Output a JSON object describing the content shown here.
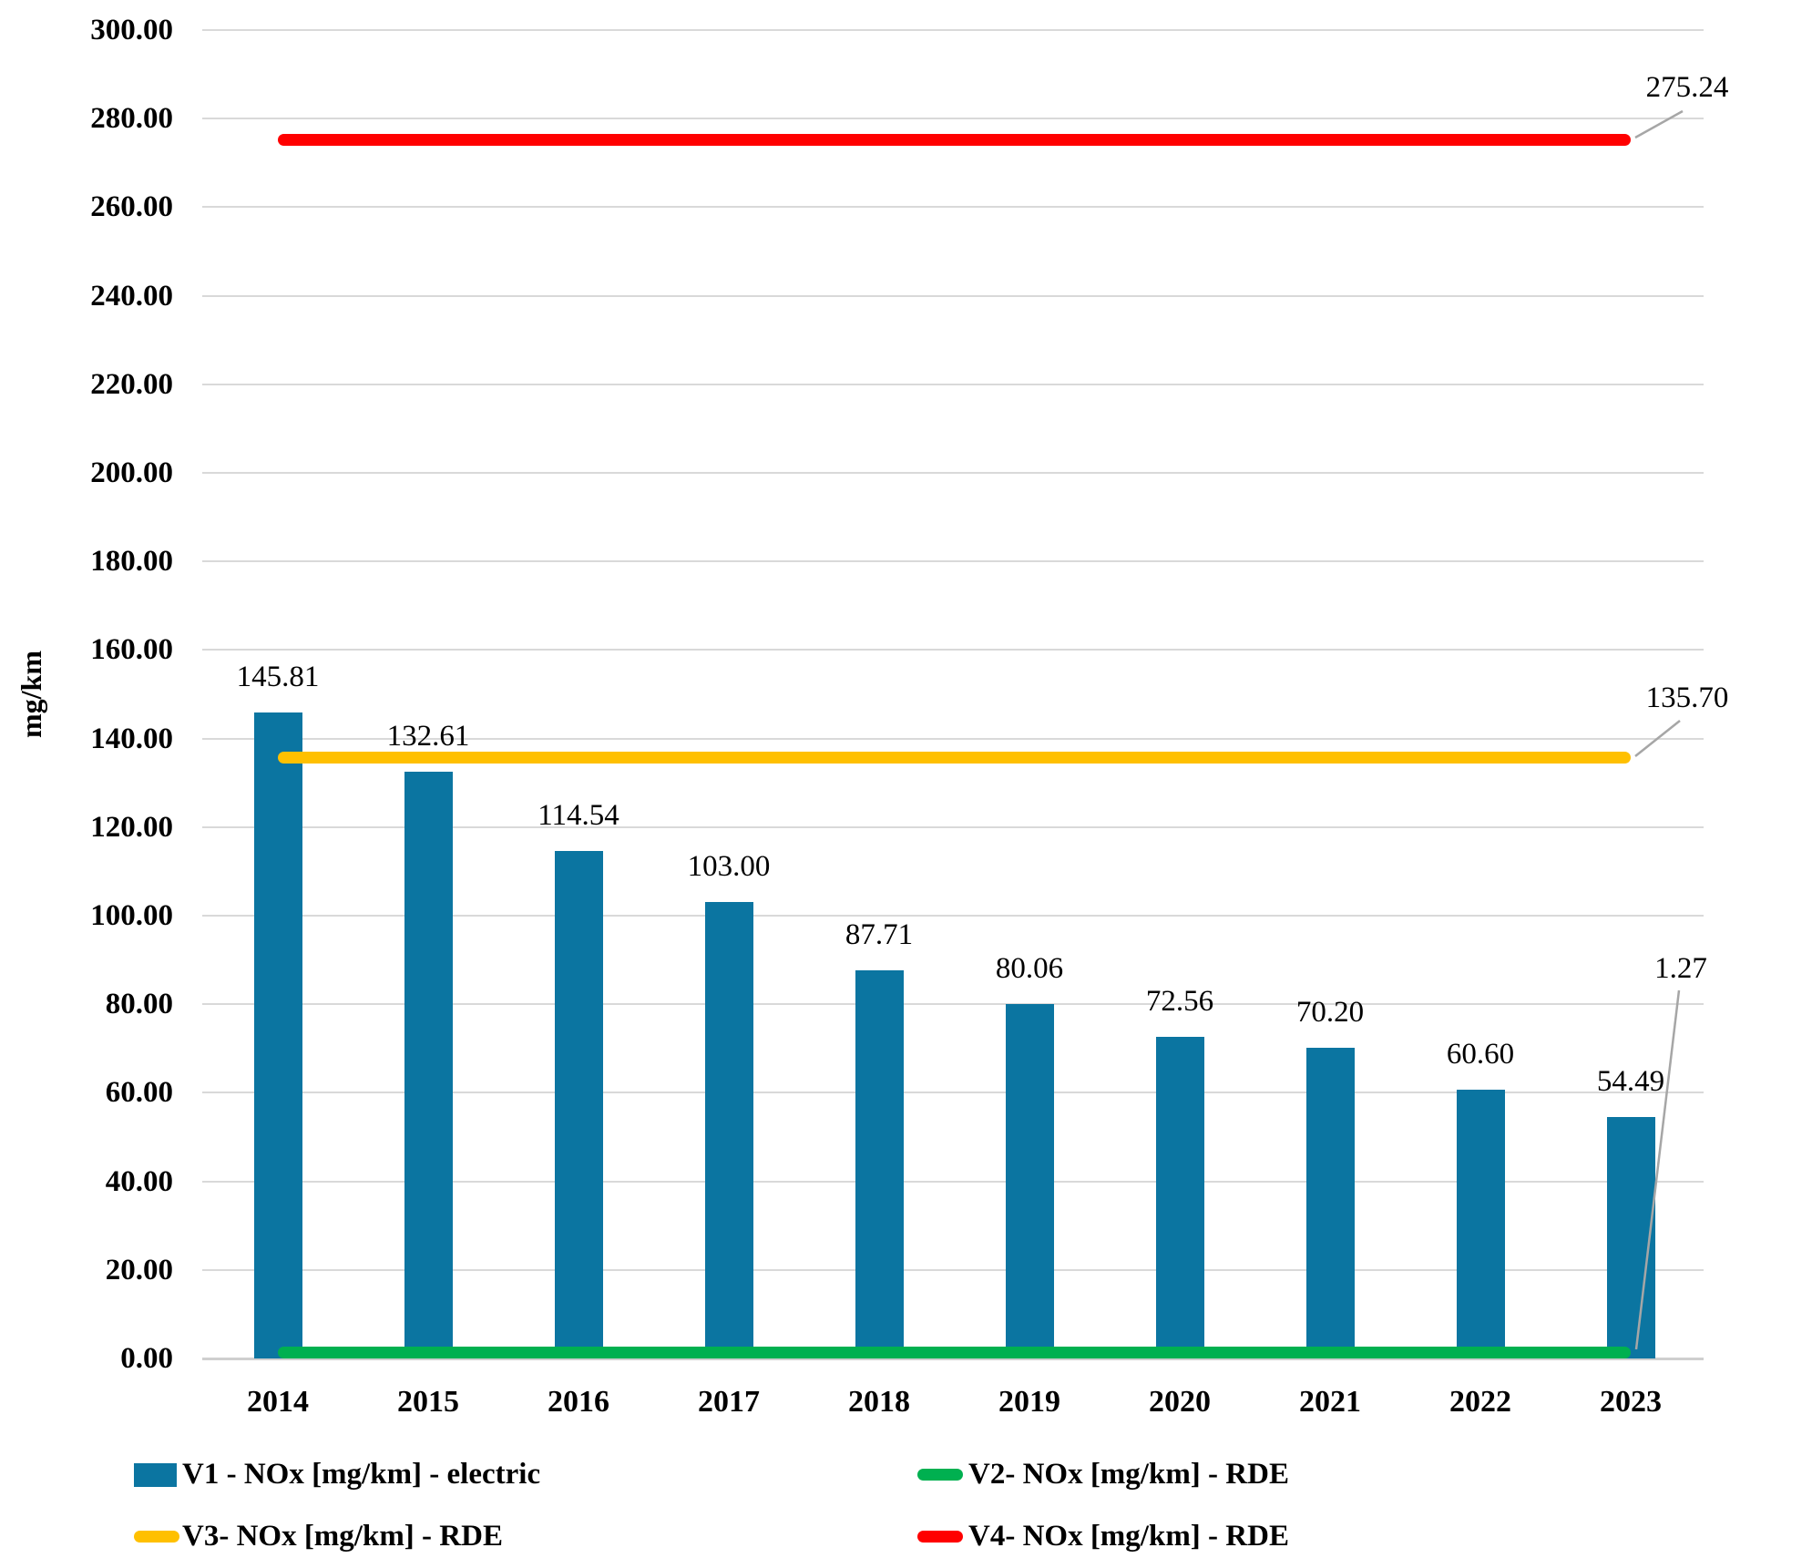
{
  "chart_data": {
    "type": "bar",
    "title": "",
    "xlabel": "",
    "ylabel": "mg/km",
    "ylim": [
      0,
      300
    ],
    "ytick_step": 20,
    "ytick_format_decimals": 2,
    "grid": true,
    "legend_position": "bottom",
    "categories": [
      "2014",
      "2015",
      "2016",
      "2017",
      "2018",
      "2019",
      "2020",
      "2021",
      "2022",
      "2023"
    ],
    "series": [
      {
        "name": "V1 - NOx [mg/km] - electric",
        "kind": "bar",
        "color": "#0b75a1",
        "values": [
          145.81,
          132.61,
          114.54,
          103.0,
          87.71,
          80.06,
          72.56,
          70.2,
          60.6,
          54.49
        ],
        "value_labels": [
          "145.81",
          "132.61",
          "114.54",
          "103.00",
          "87.71",
          "80.06",
          "72.56",
          "70.20",
          "60.60",
          "54.49"
        ]
      },
      {
        "name": "V2- NOx [mg/km] - RDE",
        "kind": "line",
        "color": "#00b050",
        "value": 1.27,
        "end_label": "1.27"
      },
      {
        "name": "V3- NOx [mg/km] - RDE",
        "kind": "line",
        "color": "#ffc000",
        "value": 135.7,
        "end_label": "135.70"
      },
      {
        "name": "V4- NOx [mg/km] - RDE",
        "kind": "line",
        "color": "#ff0000",
        "value": 275.24,
        "end_label": "275.24"
      }
    ],
    "colors": {
      "gridline": "#d9d9d9",
      "axisline": "#cfcfcf",
      "leader": "#a6a6a6",
      "text": "#000000"
    }
  }
}
